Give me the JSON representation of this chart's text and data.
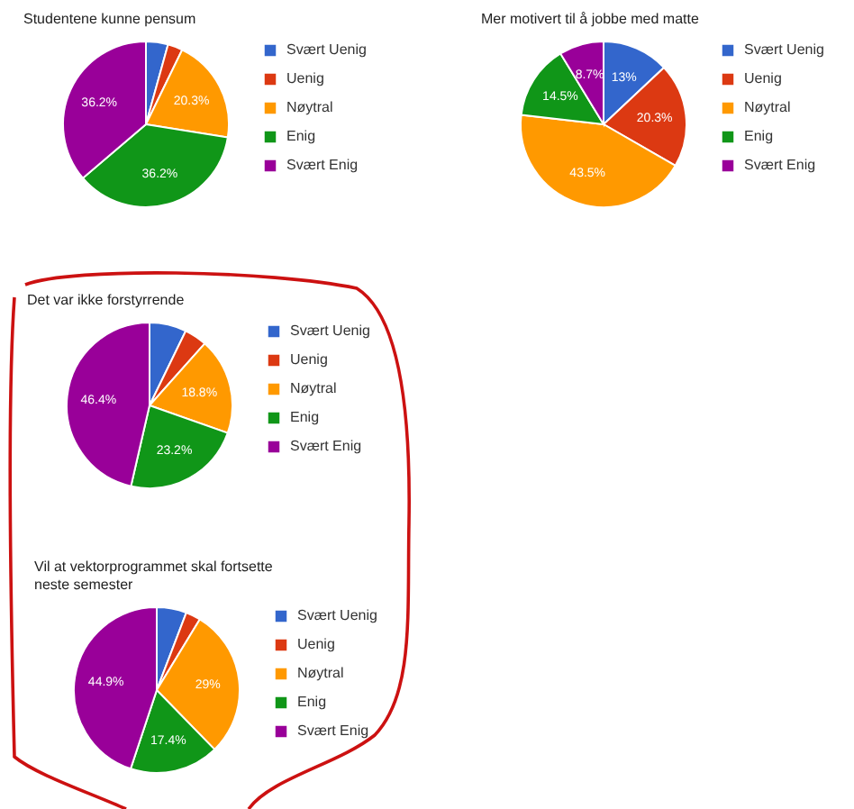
{
  "chart_data": [
    {
      "type": "pie",
      "title": "Studentene kunne pensum",
      "categories": [
        "Svært Uenig",
        "Uenig",
        "Nøytral",
        "Enig",
        "Svært Enig"
      ],
      "values": [
        4.3,
        2.9,
        20.3,
        36.2,
        36.2
      ],
      "value_labels": [
        null,
        null,
        "20.3%",
        "36.2%",
        "36.2%"
      ],
      "colors": [
        "#3366cc",
        "#dc3912",
        "#ff9900",
        "#109618",
        "#990099"
      ],
      "legend": "right"
    },
    {
      "type": "pie",
      "title": "Mer motivert til å jobbe med matte",
      "categories": [
        "Svært Uenig",
        "Uenig",
        "Nøytral",
        "Enig",
        "Svært Enig"
      ],
      "values": [
        13,
        20.3,
        43.5,
        14.5,
        8.7
      ],
      "value_labels": [
        "13%",
        "20.3%",
        "43.5%",
        "14.5%",
        "8.7%"
      ],
      "colors": [
        "#3366cc",
        "#dc3912",
        "#ff9900",
        "#109618",
        "#990099"
      ],
      "legend": "right"
    },
    {
      "type": "pie",
      "title": "Det var ikke forstyrrende",
      "categories": [
        "Svært Uenig",
        "Uenig",
        "Nøytral",
        "Enig",
        "Svært Enig"
      ],
      "values": [
        7.2,
        4.4,
        18.8,
        23.2,
        46.4
      ],
      "value_labels": [
        null,
        null,
        "18.8%",
        "23.2%",
        "46.4%"
      ],
      "colors": [
        "#3366cc",
        "#dc3912",
        "#ff9900",
        "#109618",
        "#990099"
      ],
      "legend": "right"
    },
    {
      "type": "pie",
      "title": "Vil at vektorprogrammet skal fortsette neste semester",
      "categories": [
        "Svært Uenig",
        "Uenig",
        "Nøytral",
        "Enig",
        "Svært Enig"
      ],
      "values": [
        5.8,
        2.9,
        29,
        17.4,
        44.9
      ],
      "value_labels": [
        null,
        null,
        "29%",
        "17.4%",
        "44.9%"
      ],
      "colors": [
        "#3366cc",
        "#dc3912",
        "#ff9900",
        "#109618",
        "#990099"
      ],
      "legend": "right"
    }
  ]
}
